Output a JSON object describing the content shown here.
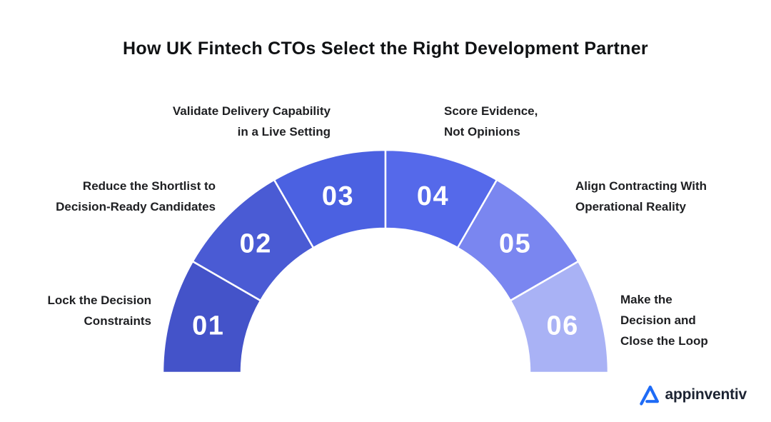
{
  "title": "How UK Fintech CTOs Select the Right Development Partner",
  "diagram": {
    "type": "semicircle-process",
    "segments": [
      {
        "number": "01",
        "color": "#4453C9",
        "label": "Lock the Decision Constraints",
        "label_lines": [
          "Lock the Decision",
          "Constraints"
        ]
      },
      {
        "number": "02",
        "color": "#4A5BD4",
        "label": "Reduce the Shortlist to Decision-Ready Candidates",
        "label_lines": [
          "Reduce the Shortlist to",
          "Decision-Ready Candidates"
        ]
      },
      {
        "number": "03",
        "color": "#4B61E1",
        "label": "Validate Delivery Capability in a Live Setting",
        "label_lines": [
          "Validate Delivery Capability",
          "in a Live Setting"
        ]
      },
      {
        "number": "04",
        "color": "#5569EA",
        "label": "Score Evidence, Not Opinions",
        "label_lines": [
          "Score Evidence,",
          "Not Opinions"
        ]
      },
      {
        "number": "05",
        "color": "#7A86F0",
        "label": "Align Contracting With Operational Reality",
        "label_lines": [
          "Align Contracting With",
          "Operational Reality"
        ]
      },
      {
        "number": "06",
        "color": "#A9B2F5",
        "label": "Make the Decision and Close the Loop",
        "label_lines": [
          "Make the",
          "Decision and",
          "Close the Loop"
        ]
      }
    ]
  },
  "logo": {
    "text": "appinventiv",
    "mark_color": "#1E6BF6",
    "text_color": "#1D2433"
  }
}
